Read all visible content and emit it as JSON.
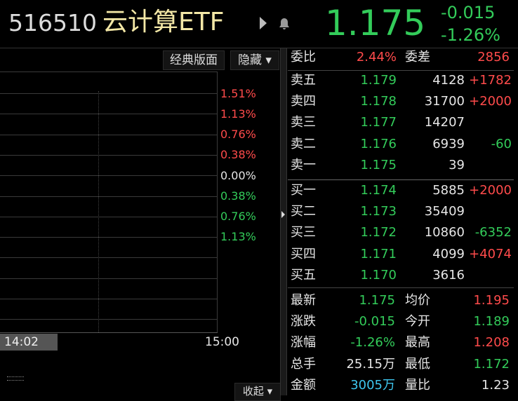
{
  "header": {
    "code": "516510",
    "name": "云计算ETF",
    "price": "1.175",
    "change": "-0.015",
    "change_pct": "-1.26%"
  },
  "toolbar": {
    "buttons": [
      "经典版面",
      "隐藏"
    ]
  },
  "chart": {
    "axis_labels": [
      "1.51%",
      "1.13%",
      "0.76%",
      "0.38%",
      "0.00%",
      "0.38%",
      "0.76%",
      "1.13%"
    ],
    "cursor_time": "14:02",
    "end_time": "15:00",
    "collapse": "收起"
  },
  "summary": {
    "ratio_label": "委比",
    "ratio": "2.44%",
    "diff_label": "委差",
    "diff": "2856"
  },
  "asks": [
    {
      "label": "卖五",
      "price": "1.179",
      "volume": "4128",
      "delta": "+1782"
    },
    {
      "label": "卖四",
      "price": "1.178",
      "volume": "31700",
      "delta": "+2000"
    },
    {
      "label": "卖三",
      "price": "1.177",
      "volume": "14207"
    },
    {
      "label": "卖二",
      "price": "1.176",
      "volume": "6939",
      "delta": "-60"
    },
    {
      "label": "卖一",
      "price": "1.175",
      "volume": "39"
    }
  ],
  "bids": [
    {
      "label": "买一",
      "price": "1.174",
      "volume": "5885",
      "delta": "+2000"
    },
    {
      "label": "买二",
      "price": "1.173",
      "volume": "35409"
    },
    {
      "label": "买三",
      "price": "1.172",
      "volume": "10860",
      "delta": "-6352"
    },
    {
      "label": "买四",
      "price": "1.171",
      "volume": "4099",
      "delta": "+4074"
    },
    {
      "label": "买五",
      "price": "1.170",
      "volume": "3616"
    }
  ],
  "stats": [
    [
      "最新",
      "1.175",
      "均价",
      "1.195"
    ],
    [
      "涨跌",
      "-0.015",
      "今开",
      "1.189"
    ],
    [
      "涨幅",
      "-1.26%",
      "最高",
      "1.208"
    ],
    [
      "总手",
      "25.15万",
      "最低",
      "1.172"
    ],
    [
      "金额",
      "3005万",
      "量比",
      "1.23"
    ]
  ]
}
